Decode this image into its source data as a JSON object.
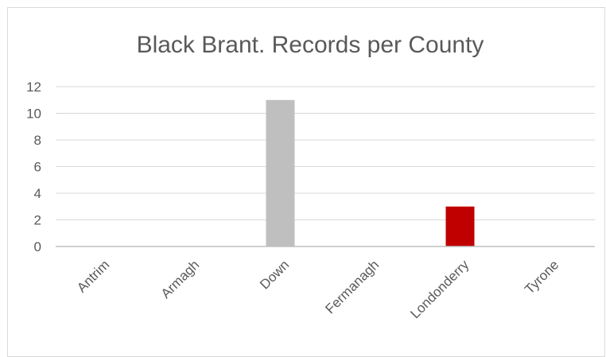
{
  "chart_data": {
    "type": "bar",
    "title": "Black Brant.  Records per County",
    "categories": [
      "Antrim",
      "Armagh",
      "Down",
      "Fermanagh",
      "Londonderry",
      "Tyrone"
    ],
    "values": [
      0,
      0,
      11,
      0,
      3,
      0
    ],
    "bar_colors": [
      "#bfbfbf",
      "#bfbfbf",
      "#bfbfbf",
      "#bfbfbf",
      "#c00000",
      "#bfbfbf"
    ],
    "ylim": [
      0,
      12
    ],
    "yticks": [
      0,
      2,
      4,
      6,
      8,
      10,
      12
    ],
    "xlabel": "",
    "ylabel": "",
    "grid": true,
    "legend": "none"
  },
  "colors": {
    "grid": "#d9d9d9",
    "axis": "#bfbfbf",
    "text": "#595959",
    "border": "#d9d9d9"
  }
}
